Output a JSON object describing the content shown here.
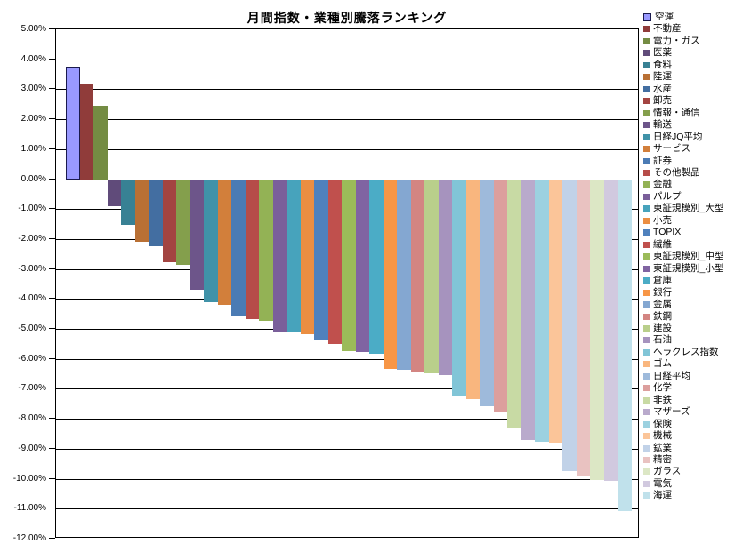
{
  "chart_data": {
    "type": "bar",
    "title": "月間指数・業種別騰落ランキング",
    "ylabel": "",
    "xlabel": "",
    "ylim": [
      -12,
      5
    ],
    "ytick_step": 1,
    "ytick_labels": [
      "5.00%",
      "4.00%",
      "3.00%",
      "2.00%",
      "1.00%",
      "0.00%",
      "-1.00%",
      "-2.00%",
      "-3.00%",
      "-4.00%",
      "-5.00%",
      "-6.00%",
      "-7.00%",
      "-8.00%",
      "-9.00%",
      "-10.00%",
      "-11.00%",
      "-12.00%"
    ],
    "grid": true,
    "legend_position": "right",
    "unit": "percent",
    "series": [
      {
        "name": "空運",
        "value": 3.75,
        "color": "#9999FF",
        "border": "#1a1a4d"
      },
      {
        "name": "不動産",
        "value": 3.17,
        "color": "#903C3A"
      },
      {
        "name": "電力・ガス",
        "value": 2.44,
        "color": "#748C43"
      },
      {
        "name": "医薬",
        "value": -0.89,
        "color": "#604B7A"
      },
      {
        "name": "食料",
        "value": -1.52,
        "color": "#388194"
      },
      {
        "name": "陸運",
        "value": -2.08,
        "color": "#B97034"
      },
      {
        "name": "水産",
        "value": -2.23,
        "color": "#436EA1"
      },
      {
        "name": "卸売",
        "value": -2.78,
        "color": "#A34441"
      },
      {
        "name": "情報・通信",
        "value": -2.87,
        "color": "#849F4C"
      },
      {
        "name": "輸送",
        "value": -3.69,
        "color": "#6D558A"
      },
      {
        "name": "日経JQ平均",
        "value": -4.11,
        "color": "#4092A8"
      },
      {
        "name": "サービス",
        "value": -4.21,
        "color": "#D27F3B"
      },
      {
        "name": "証券",
        "value": -4.56,
        "color": "#4B7BB4"
      },
      {
        "name": "その他製品",
        "value": -4.68,
        "color": "#B64C49"
      },
      {
        "name": "金融",
        "value": -4.73,
        "color": "#93B255"
      },
      {
        "name": "パルプ",
        "value": -5.08,
        "color": "#7A5F9A"
      },
      {
        "name": "東証規模別_大型",
        "value": -5.13,
        "color": "#47A3BC"
      },
      {
        "name": "小売",
        "value": -5.17,
        "color": "#EB8E42"
      },
      {
        "name": "TOPIX",
        "value": -5.35,
        "color": "#4F81BD"
      },
      {
        "name": "繊維",
        "value": -5.5,
        "color": "#C0504D"
      },
      {
        "name": "東証規模別_中型",
        "value": -5.73,
        "color": "#9BBB59"
      },
      {
        "name": "東証規模別_小型",
        "value": -5.78,
        "color": "#8064A2"
      },
      {
        "name": "倉庫",
        "value": -5.83,
        "color": "#4BACC6"
      },
      {
        "name": "銀行",
        "value": -6.34,
        "color": "#F79646"
      },
      {
        "name": "金属",
        "value": -6.37,
        "color": "#84A7D1"
      },
      {
        "name": "鉄鋼",
        "value": -6.46,
        "color": "#D38582"
      },
      {
        "name": "建設",
        "value": -6.49,
        "color": "#B9CF8B"
      },
      {
        "name": "石油",
        "value": -6.55,
        "color": "#A693BE"
      },
      {
        "name": "ヘラクレス指数",
        "value": -7.23,
        "color": "#81C5D7"
      },
      {
        "name": "ゴム",
        "value": -7.35,
        "color": "#F9B67E"
      },
      {
        "name": "日経平均",
        "value": -7.58,
        "color": "#9EBADB"
      },
      {
        "name": "化学",
        "value": -7.76,
        "color": "#DC9F9D"
      },
      {
        "name": "非鉄",
        "value": -8.32,
        "color": "#C8DAA4"
      },
      {
        "name": "マザーズ",
        "value": -8.71,
        "color": "#B9AACC"
      },
      {
        "name": "保険",
        "value": -8.76,
        "color": "#9CD1E0"
      },
      {
        "name": "機械",
        "value": -8.79,
        "color": "#FBC599"
      },
      {
        "name": "鉱業",
        "value": -9.74,
        "color": "#C1D2E8"
      },
      {
        "name": "精密",
        "value": -9.89,
        "color": "#E9C2C1"
      },
      {
        "name": "ガラス",
        "value": -10.05,
        "color": "#DCE7C5"
      },
      {
        "name": "電気",
        "value": -10.08,
        "color": "#D1C9DF"
      },
      {
        "name": "海運",
        "value": -11.07,
        "color": "#C0E1EB"
      }
    ]
  },
  "layout_colors": {
    "background": "#FFFFFF",
    "gridline": "#000000",
    "axis": "#000000",
    "text": "#000000"
  }
}
